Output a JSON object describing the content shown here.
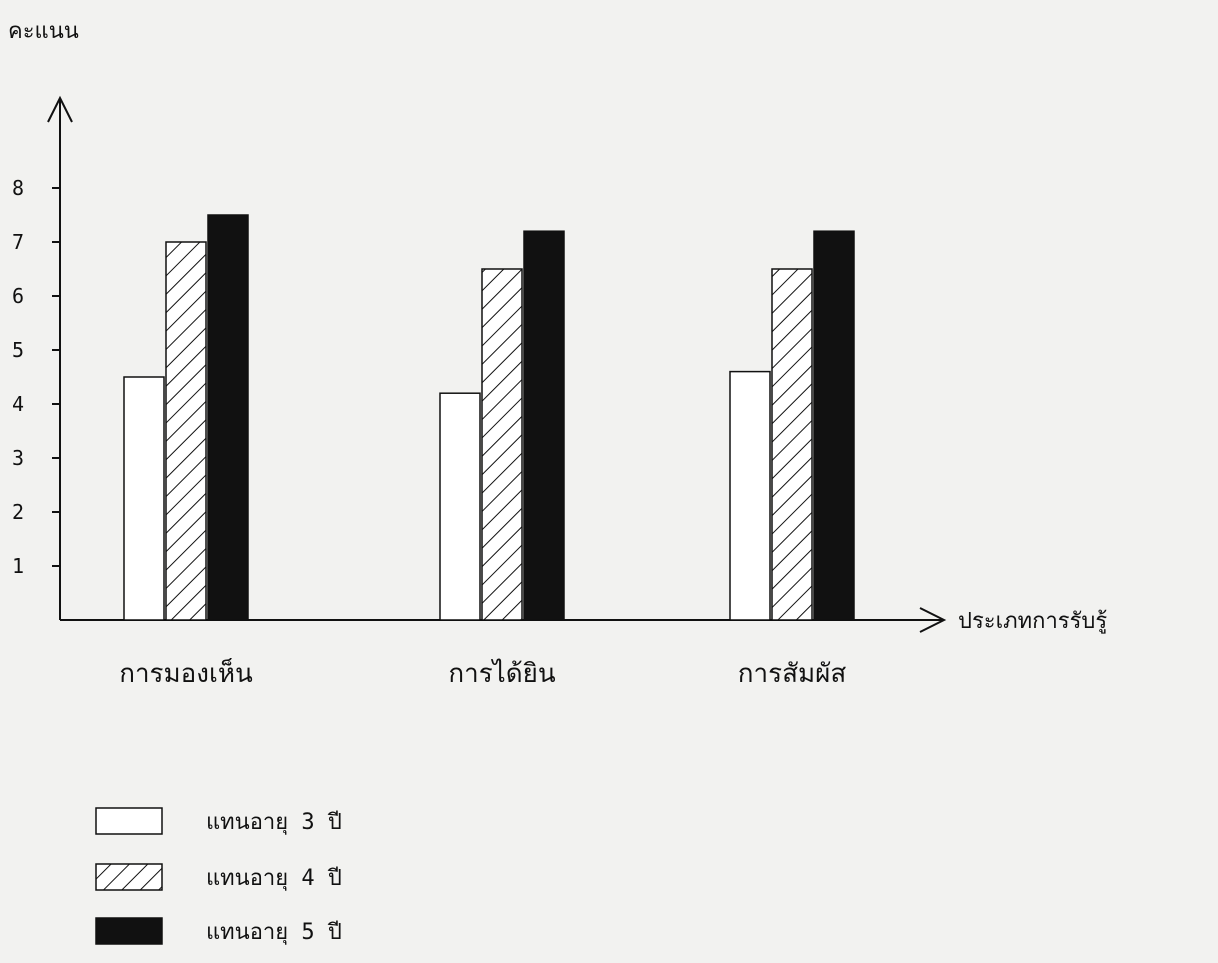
{
  "chart_data": {
    "type": "bar",
    "ylabel": "คะแนน",
    "xlabel": "ประเภทการรับรู้",
    "categories": [
      "การมองเห็น",
      "การได้ยิน",
      "การสัมผัส"
    ],
    "ylim": [
      0,
      8
    ],
    "yticks": [
      "1",
      "2",
      "3",
      "4",
      "5",
      "6",
      "7",
      "8"
    ],
    "legend_position": "bottom-left",
    "series": [
      {
        "name": "แทนอายุ 3 ปี",
        "values": [
          4.5,
          4.2,
          4.6
        ],
        "pattern": "white",
        "color": "#ffffff"
      },
      {
        "name": "แทนอายุ 4 ปี",
        "values": [
          7.0,
          6.5,
          6.5
        ],
        "pattern": "hatched",
        "color": "#ffffff"
      },
      {
        "name": "แทนอายุ 5 ปี",
        "values": [
          7.5,
          7.2,
          7.2
        ],
        "pattern": "solid",
        "color": "#111111"
      }
    ]
  }
}
